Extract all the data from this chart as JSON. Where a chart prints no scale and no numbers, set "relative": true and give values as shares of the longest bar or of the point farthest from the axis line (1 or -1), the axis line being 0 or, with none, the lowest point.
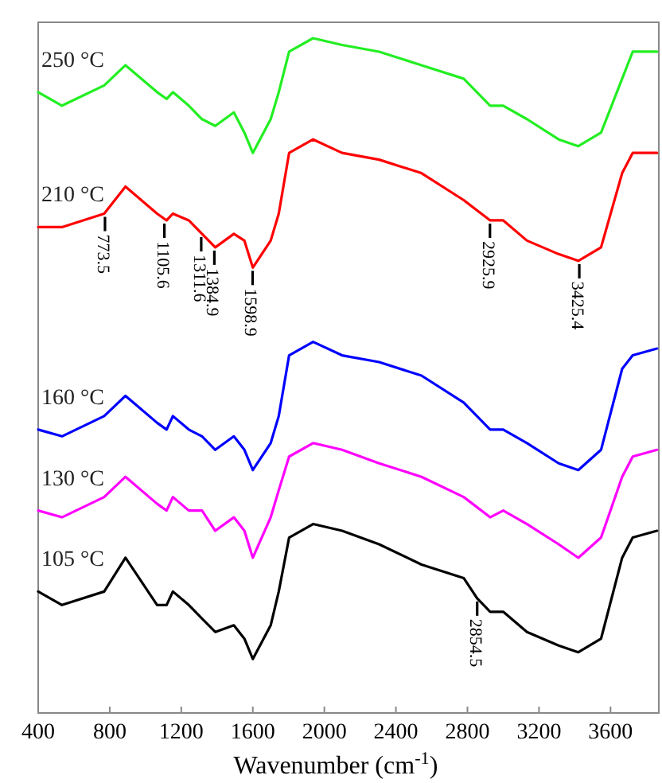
{
  "chart_data": {
    "type": "line",
    "xlabel": "Wavenumber (cm$^{-1}$)",
    "relative": true,
    "tick_labels": "x",
    "grid": false,
    "legend": false,
    "marker": "none",
    "line_style": "solid",
    "xlim": [
      400,
      3870
    ],
    "xticks": [
      400,
      800,
      1200,
      1600,
      2000,
      2400,
      2800,
      3200,
      3600
    ],
    "x": [
      400,
      533,
      769,
      888,
      1065,
      1118,
      1153,
      1242,
      1316,
      1390,
      1494,
      1553,
      1600,
      1700,
      1745,
      1803,
      1937,
      2099,
      2306,
      2543,
      2779,
      2927,
      3000,
      3133,
      3310,
      3420,
      3547,
      3665,
      3724,
      3860
    ],
    "series": [
      {
        "name": "250 °C",
        "color": "#22ee22",
        "values": [
          0.92,
          0.9,
          0.93,
          0.96,
          0.92,
          0.91,
          0.92,
          0.9,
          0.88,
          0.87,
          0.89,
          0.86,
          0.83,
          0.88,
          0.92,
          0.98,
          1,
          0.99,
          0.98,
          0.96,
          0.94,
          0.9,
          0.9,
          0.88,
          0.85,
          0.84,
          0.86,
          0.94,
          0.98,
          0.98
        ]
      },
      {
        "name": "210 °C",
        "color": "#ff0000",
        "values": [
          0.72,
          0.72,
          0.74,
          0.78,
          0.74,
          0.73,
          0.74,
          0.73,
          0.71,
          0.69,
          0.71,
          0.7,
          0.66,
          0.7,
          0.74,
          0.83,
          0.85,
          0.83,
          0.82,
          0.8,
          0.76,
          0.73,
          0.73,
          0.7,
          0.68,
          0.67,
          0.69,
          0.8,
          0.83,
          0.83
        ]
      },
      {
        "name": "160 °C",
        "color": "#0000ff",
        "values": [
          0.42,
          0.41,
          0.44,
          0.47,
          0.43,
          0.42,
          0.44,
          0.42,
          0.41,
          0.39,
          0.41,
          0.39,
          0.36,
          0.4,
          0.44,
          0.53,
          0.55,
          0.53,
          0.52,
          0.5,
          0.46,
          0.42,
          0.42,
          0.4,
          0.37,
          0.36,
          0.39,
          0.51,
          0.53,
          0.54
        ]
      },
      {
        "name": "130 °C",
        "color": "#ff00ff",
        "values": [
          0.3,
          0.29,
          0.32,
          0.35,
          0.31,
          0.3,
          0.32,
          0.3,
          0.3,
          0.27,
          0.29,
          0.27,
          0.23,
          0.29,
          0.33,
          0.38,
          0.4,
          0.39,
          0.37,
          0.35,
          0.32,
          0.29,
          0.3,
          0.28,
          0.25,
          0.23,
          0.26,
          0.35,
          0.38,
          0.39
        ]
      },
      {
        "name": "105 °C",
        "color": "#000000",
        "x": [
          400,
          533,
          769,
          888,
          1065,
          1118,
          1153,
          1242,
          1316,
          1390,
          1494,
          1553,
          1600,
          1700,
          1745,
          1803,
          1937,
          2099,
          2306,
          2543,
          2779,
          2854,
          2927,
          3000,
          3133,
          3310,
          3420,
          3547,
          3665,
          3724,
          3860
        ],
        "values": [
          0.18,
          0.16,
          0.18,
          0.23,
          0.16,
          0.16,
          0.18,
          0.16,
          0.14,
          0.12,
          0.13,
          0.11,
          0.08,
          0.13,
          0.18,
          0.26,
          0.28,
          0.27,
          0.25,
          0.22,
          0.2,
          0.17,
          0.15,
          0.15,
          0.12,
          0.1,
          0.09,
          0.11,
          0.23,
          0.26,
          0.27
        ]
      }
    ],
    "annotations": [
      {
        "text": "773.5",
        "x": 773.5,
        "y": 0.74
      },
      {
        "text": "1105.6",
        "x": 1105.6,
        "y": 0.73
      },
      {
        "text": "1311.6",
        "x": 1311.6,
        "y": 0.71
      },
      {
        "text": "1384.9",
        "x": 1384.9,
        "y": 0.69
      },
      {
        "text": "1598.9",
        "x": 1598.9,
        "y": 0.66
      },
      {
        "text": "2925.9",
        "x": 2925.9,
        "y": 0.73
      },
      {
        "text": "3425.4",
        "x": 3425.4,
        "y": 0.67
      },
      {
        "text": "2854.5",
        "x": 2854.5,
        "y": 0.17
      }
    ]
  }
}
